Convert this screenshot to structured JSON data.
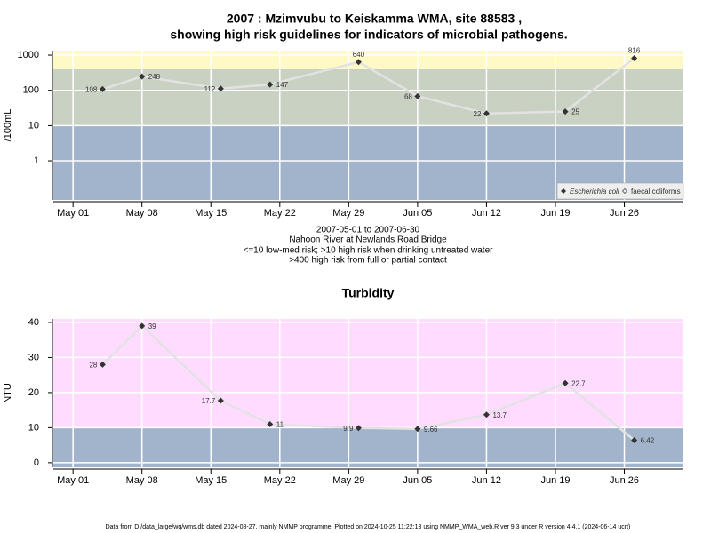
{
  "chart_data": [
    {
      "type": "line",
      "title": [
        "2007 : Mzimvubu to Keiskamma WMA, site 88583 ,",
        "showing high risk guidelines for indicators of microbial pathogens."
      ],
      "y_label": "/100mL",
      "log_y": true,
      "x": [
        "May 04",
        "May 08",
        "May 16",
        "May 21",
        "May 30",
        "Jun 05",
        "Jun 12",
        "Jun 20",
        "Jun 27"
      ],
      "series": [
        {
          "name": "Escherichia coli",
          "color": "#333333",
          "values": [
            108,
            248,
            112,
            147,
            640,
            68,
            22,
            25,
            816
          ]
        },
        {
          "name": "faecal coliforms",
          "color": "#333333",
          "values": [
            null,
            null,
            null,
            null,
            null,
            null,
            null,
            null,
            null
          ]
        }
      ],
      "xlim": [
        "Apr 29",
        "Jul 02"
      ],
      "xticks": [
        "May 01",
        "May 08",
        "May 15",
        "May 22",
        "May 29",
        "Jun 05",
        "Jun 12",
        "Jun 19",
        "Jun 26"
      ],
      "ylim": [
        0.078,
        1340
      ],
      "yticks": [
        1,
        10,
        100,
        1000
      ],
      "bands": [
        {
          "from": 0.078,
          "to": 10,
          "color": "#a2b4cc"
        },
        {
          "from": 10,
          "to": 400,
          "color": "#c9d1c3"
        },
        {
          "from": 400,
          "to": 1340,
          "color": "#fff9c6"
        }
      ],
      "grid": true,
      "legend": "bottom-right",
      "line_color": "#e2e2e2"
    },
    {
      "type": "line",
      "title": "Turbidity",
      "y_label": "NTU",
      "log_y": false,
      "x": [
        "May 04",
        "May 08",
        "May 16",
        "May 21",
        "May 30",
        "Jun 05",
        "Jun 12",
        "Jun 20",
        "Jun 27"
      ],
      "series": [
        {
          "name": "Turbidity",
          "color": "#333333",
          "values": [
            28,
            39,
            17.7,
            11,
            9.9,
            9.66,
            13.7,
            22.7,
            6.42
          ]
        }
      ],
      "xlim": [
        "Apr 29",
        "Jul 02"
      ],
      "xticks": [
        "May 01",
        "May 08",
        "May 15",
        "May 22",
        "May 29",
        "Jun 05",
        "Jun 12",
        "Jun 19",
        "Jun 26"
      ],
      "ylim": [
        -1.3,
        41
      ],
      "yticks": [
        0,
        10,
        20,
        30,
        40
      ],
      "bands": [
        {
          "from": -1.3,
          "to": 10,
          "color": "#a2b4cc"
        },
        {
          "from": 10,
          "to": 41,
          "color": "#ffdcff"
        }
      ],
      "grid": true,
      "line_color": "#e2e2e2"
    }
  ],
  "caption": [
    "2007-05-01 to 2007-06-30",
    "Nahoon River at Newlands Road Bridge",
    "<=10 low-med risk; >10 high risk when drinking untreated water",
    ">400 high risk from full or partial contact"
  ],
  "footer": "Data from D:/data_large/wq/wms.db dated 2024-08-27, mainly NMMP programme. Plotted on 2024-10-25 11:22:13 using NMMP_WMA_web.R ver 9.3 under R version 4.4.1 (2024-06-14 ucrt)"
}
